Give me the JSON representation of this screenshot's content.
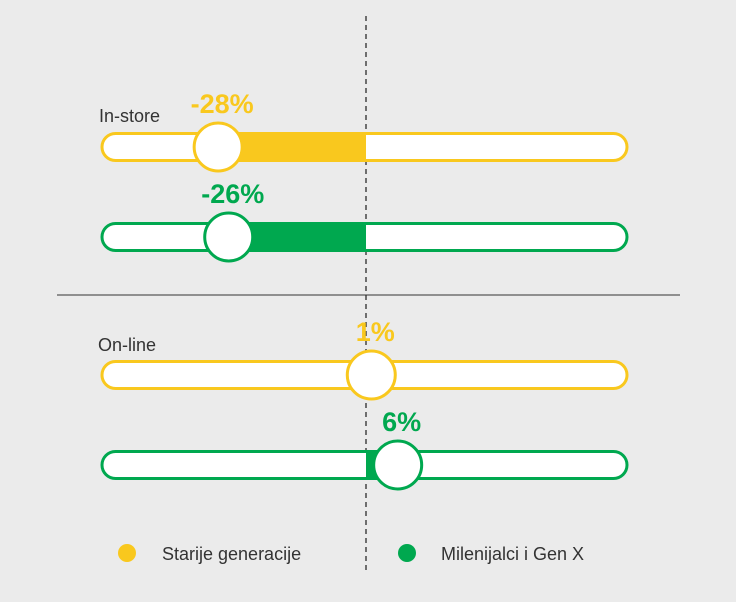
{
  "chart_data": {
    "type": "bar",
    "groups": [
      {
        "label": "In-store",
        "rows": [
          {
            "series": "Starije generacije",
            "value": -28,
            "display": "-28%"
          },
          {
            "series": "Milenijalci i Gen X",
            "value": -26,
            "display": "-26%"
          }
        ]
      },
      {
        "label": "On-line",
        "rows": [
          {
            "series": "Starije generacije",
            "value": 1,
            "display": "1%"
          },
          {
            "series": "Milenijalci i Gen X",
            "value": 6,
            "display": "6%"
          }
        ]
      }
    ],
    "xlim": [
      -50,
      50
    ],
    "series": [
      {
        "name": "Starije generacije",
        "color": "#f9c81e"
      },
      {
        "name": "Milenijalci i Gen X",
        "color": "#00a84f"
      }
    ],
    "legend_position": "bottom",
    "grid": false
  }
}
